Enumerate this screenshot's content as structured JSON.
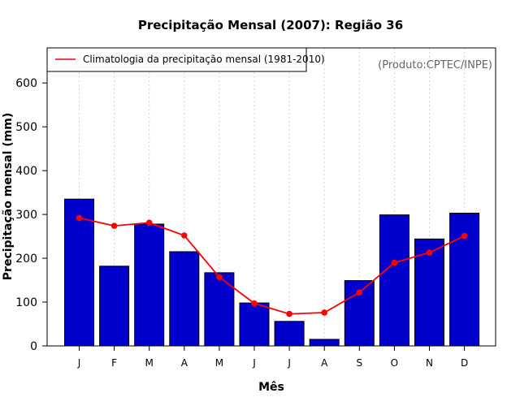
{
  "chart_data": {
    "type": "bar",
    "title": "Precipitação Mensal (2007): Região 36",
    "xlabel": "Mês",
    "ylabel": "Precipitação mensal (mm)",
    "categories": [
      "J",
      "F",
      "M",
      "A",
      "M",
      "J",
      "J",
      "A",
      "S",
      "O",
      "N",
      "D"
    ],
    "ylim": [
      0,
      680
    ],
    "yticks": [
      0,
      100,
      200,
      300,
      400,
      500,
      600
    ],
    "grid": "vertical dotted",
    "series": [
      {
        "name": "Precipitação mensal 2007",
        "kind": "bar",
        "color": "#0000CD",
        "values": [
          335,
          182,
          278,
          215,
          167,
          98,
          56,
          15,
          149,
          299,
          244,
          303
        ]
      },
      {
        "name": "Climatologia da precipitação mensal (1981-2010)",
        "kind": "line",
        "color": "#FF0000",
        "values": [
          292,
          274,
          281,
          252,
          157,
          97,
          73,
          76,
          122,
          190,
          213,
          251
        ]
      }
    ],
    "legend": {
      "position": "top-left",
      "entries": [
        "Climatologia da precipitação mensal (1981-2010)"
      ]
    },
    "credit": "(Produto:CPTEC/INPE)"
  }
}
